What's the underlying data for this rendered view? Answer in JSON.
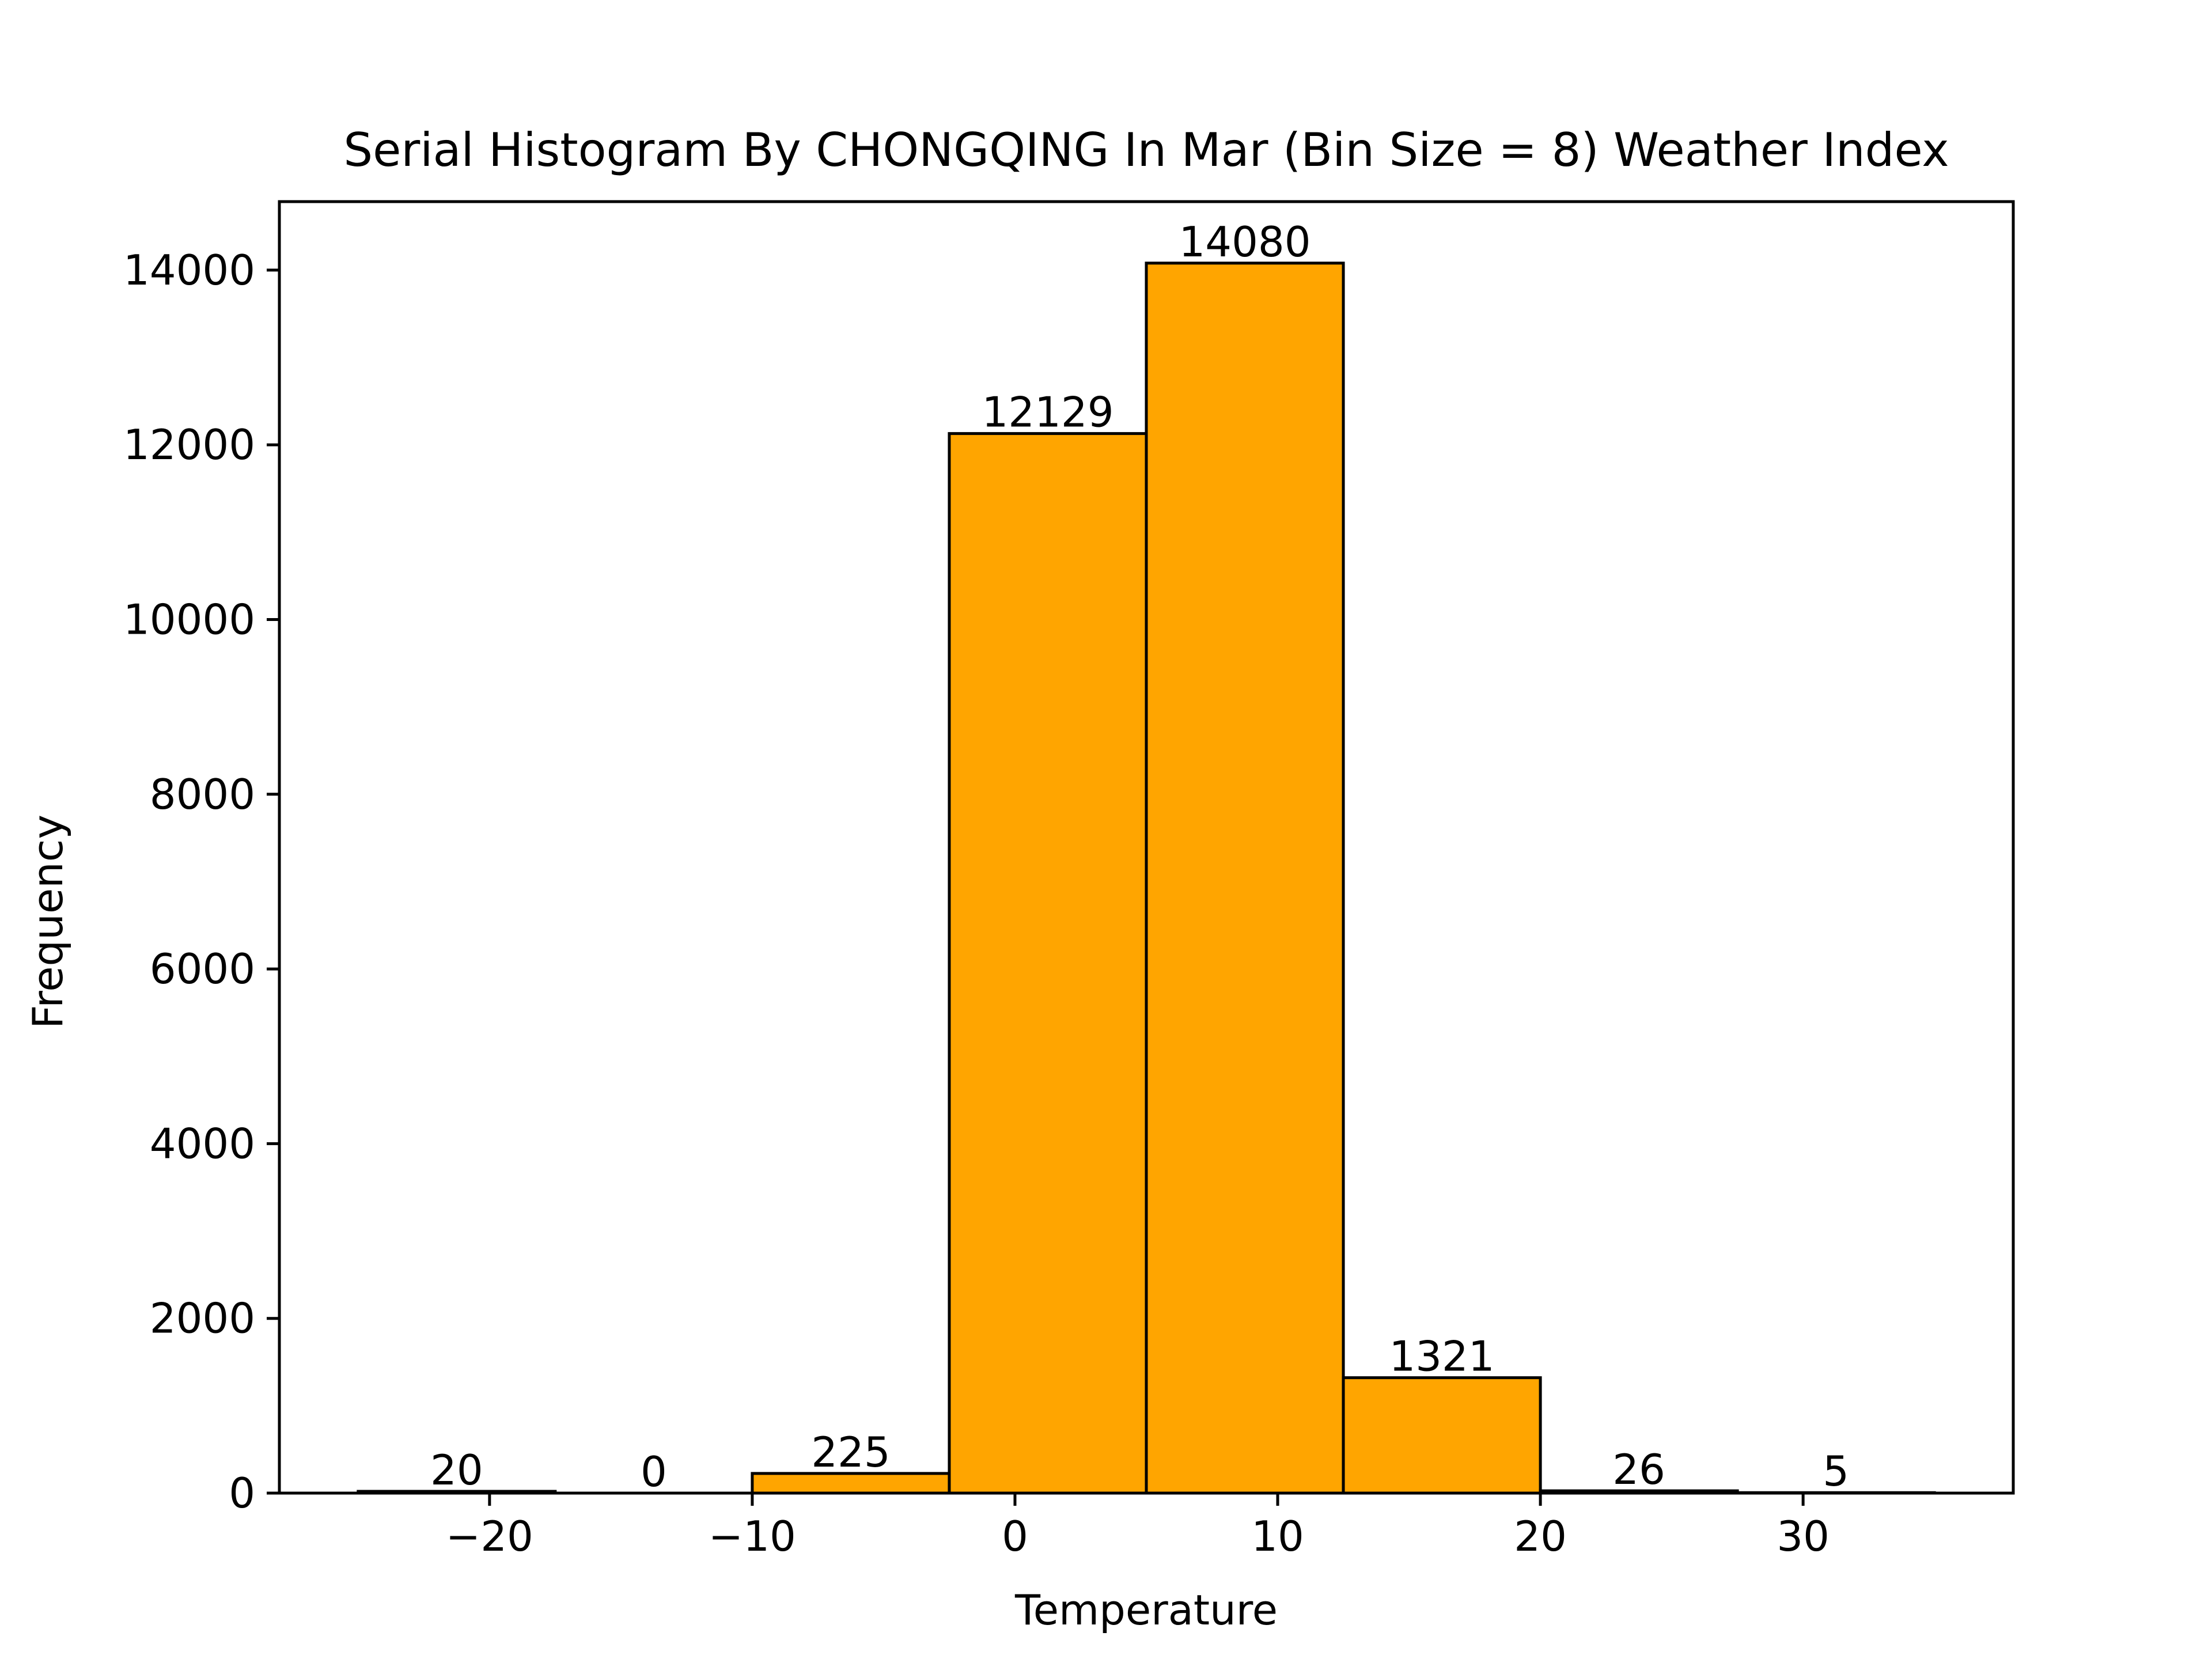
{
  "chart_data": {
    "type": "bar",
    "title": "Serial Histogram By CHONGQING In Mar (Bin Size = 8) Weather Index",
    "xlabel": "Temperature",
    "ylabel": "Frequency",
    "bins": [
      {
        "start": -25,
        "end": -17.5,
        "value": 20
      },
      {
        "start": -17.5,
        "end": -10,
        "value": 0
      },
      {
        "start": -10,
        "end": -2.5,
        "value": 225
      },
      {
        "start": -2.5,
        "end": 5,
        "value": 12129
      },
      {
        "start": 5,
        "end": 12.5,
        "value": 14080
      },
      {
        "start": 12.5,
        "end": 20,
        "value": 1321
      },
      {
        "start": 20,
        "end": 27.5,
        "value": 26
      },
      {
        "start": 27.5,
        "end": 35,
        "value": 5
      }
    ],
    "xlim": [
      -28,
      38
    ],
    "ylim": [
      0,
      14784
    ],
    "xticks": [
      -20,
      -10,
      0,
      10,
      20,
      30
    ],
    "xtick_labels": [
      "−20",
      "−10",
      "0",
      "10",
      "20",
      "30"
    ],
    "yticks": [
      0,
      2000,
      4000,
      6000,
      8000,
      10000,
      12000,
      14000
    ],
    "ytick_labels": [
      "0",
      "2000",
      "4000",
      "6000",
      "8000",
      "10000",
      "12000",
      "14000"
    ],
    "bar_color": "#FFA500",
    "edge_color": "#000000",
    "grid": false,
    "legend": false
  }
}
